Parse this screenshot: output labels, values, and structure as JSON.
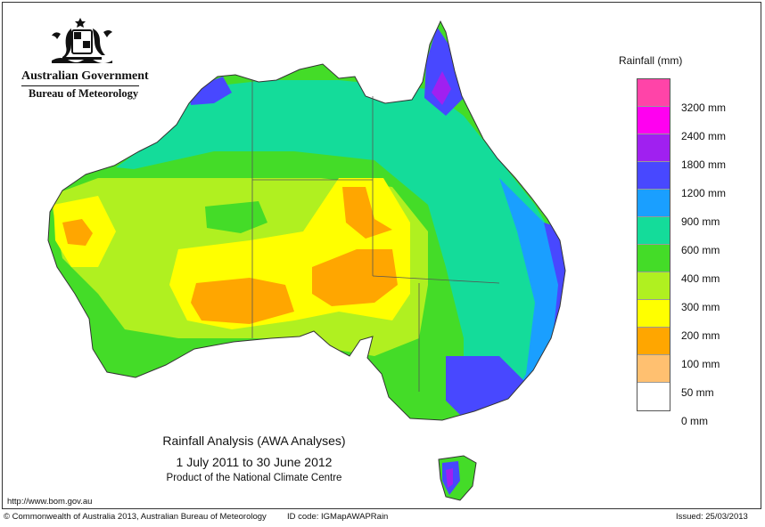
{
  "header": {
    "org_name": "Australian Government",
    "agency_name": "Bureau of Meteorology"
  },
  "legend": {
    "title": "Rainfall (mm)",
    "items": [
      {
        "label": "3200 mm",
        "color": "#ff44a8"
      },
      {
        "label": "2400 mm",
        "color": "#ff00f0"
      },
      {
        "label": "1800 mm",
        "color": "#a020f0"
      },
      {
        "label": "1200 mm",
        "color": "#4848ff"
      },
      {
        "label": "900 mm",
        "color": "#1a9fff"
      },
      {
        "label": "600 mm",
        "color": "#14dc9a"
      },
      {
        "label": "400 mm",
        "color": "#44dc28"
      },
      {
        "label": "300 mm",
        "color": "#b0f020"
      },
      {
        "label": "200 mm",
        "color": "#ffff00"
      },
      {
        "label": "100 mm",
        "color": "#ffa600"
      },
      {
        "label": "50 mm",
        "color": "#ffc070"
      },
      {
        "label": "0 mm",
        "color": "#ffffff"
      }
    ]
  },
  "caption": {
    "line1": "Rainfall Analysis (AWA Analyses)",
    "line2": "1 July 2011 to 30 June 2012",
    "line3": "Product of the National Climate Centre"
  },
  "footer": {
    "url": "http://www.bom.gov.au",
    "copyright": "© Commonwealth of Australia 2013, Australian Bureau of Meteorology",
    "id_code": "ID code: IGMapAWAPRain",
    "issued": "Issued: 25/03/2013"
  }
}
